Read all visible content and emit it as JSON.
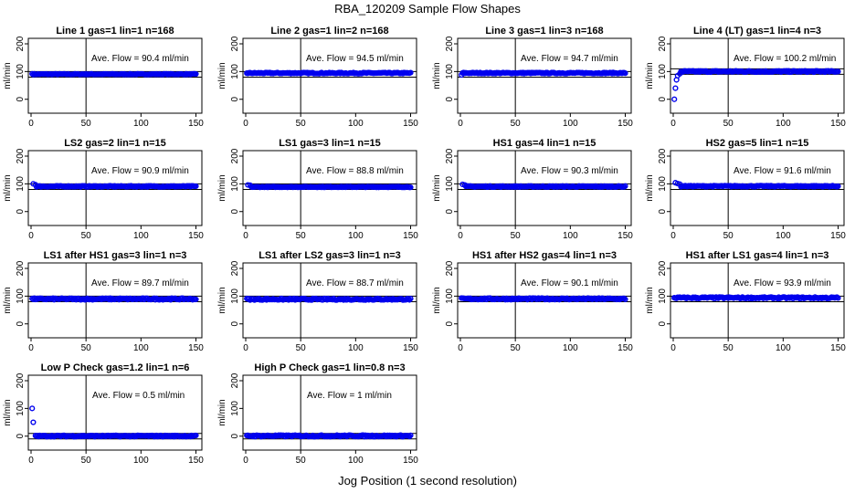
{
  "figure": {
    "title": "RBA_120209  Sample Flow Shapes",
    "xlabel": "Jog Position (1 second resolution)"
  },
  "chart_data": {
    "type": "scatter",
    "point_color": "#0000ee",
    "xlim": [
      0,
      150
    ],
    "ylim": [
      0,
      200
    ],
    "xticks": [
      "0",
      "50",
      "100",
      "150"
    ],
    "yticks": [
      "0",
      "100",
      "200"
    ],
    "ylabel": "ml/min",
    "vline_x": 50,
    "panels": [
      {
        "title": "Line 1 gas=1 lin=1 n=168",
        "ave_text": "Ave. Flow = 90.4  ml/min",
        "mean": 90.4,
        "hlines": [
          80,
          100
        ],
        "start_points": [
          [
            1,
            92
          ]
        ],
        "noise": 1.5
      },
      {
        "title": "Line 2 gas=1 lin=2 n=168",
        "ave_text": "Ave. Flow = 94.5  ml/min",
        "mean": 94.5,
        "hlines": [
          80,
          100
        ],
        "start_points": [],
        "noise": 2
      },
      {
        "title": "Line 3 gas=1 lin=3 n=168",
        "ave_text": "Ave. Flow = 94.7  ml/min",
        "mean": 94.7,
        "hlines": [
          80,
          100
        ],
        "start_points": [
          [
            1,
            88
          ]
        ],
        "noise": 2
      },
      {
        "title": "Line 4 (LT) gas=1 lin=4 n=3",
        "ave_text": "Ave. Flow = 100.2  ml/min",
        "mean": 100.2,
        "hlines": [
          90,
          110
        ],
        "start_points": [
          [
            1,
            0
          ],
          [
            2,
            40
          ],
          [
            3,
            70
          ],
          [
            4,
            85
          ],
          [
            6,
            92
          ]
        ],
        "noise": 2.5
      },
      {
        "title": "LS2 gas=2 lin=1 n=15",
        "ave_text": "Ave. Flow = 90.9  ml/min",
        "mean": 90.9,
        "hlines": [
          80,
          100
        ],
        "start_points": [
          [
            2,
            100
          ],
          [
            4,
            97
          ]
        ],
        "noise": 2
      },
      {
        "title": "LS1 gas=3 lin=1 n=15",
        "ave_text": "Ave. Flow = 88.8  ml/min",
        "mean": 88.8,
        "hlines": [
          80,
          100
        ],
        "start_points": [
          [
            2,
            96
          ],
          [
            4,
            95
          ]
        ],
        "noise": 1.5
      },
      {
        "title": "HS1 gas=4 lin=1 n=15",
        "ave_text": "Ave. Flow = 90.3  ml/min",
        "mean": 90.3,
        "hlines": [
          80,
          100
        ],
        "start_points": [
          [
            2,
            98
          ],
          [
            4,
            96
          ]
        ],
        "noise": 2
      },
      {
        "title": "HS2 gas=5 lin=1 n=15",
        "ave_text": "Ave. Flow = 91.6  ml/min",
        "mean": 91.6,
        "hlines": [
          80,
          100
        ],
        "start_points": [
          [
            2,
            104
          ],
          [
            4,
            101
          ],
          [
            6,
            99
          ]
        ],
        "noise": 2
      },
      {
        "title": "LS1 after HS1 gas=3 lin=1 n=3",
        "ave_text": "Ave. Flow = 89.7  ml/min",
        "mean": 89.7,
        "hlines": [
          80,
          100
        ],
        "start_points": [],
        "noise": 3
      },
      {
        "title": "LS1 after LS2 gas=3 lin=1 n=3",
        "ave_text": "Ave. Flow = 88.7  ml/min",
        "mean": 88.7,
        "hlines": [
          80,
          100
        ],
        "start_points": [],
        "noise": 3
      },
      {
        "title": "HS1 after HS2 gas=4 lin=1 n=3",
        "ave_text": "Ave. Flow = 90.1  ml/min",
        "mean": 90.1,
        "hlines": [
          80,
          100
        ],
        "start_points": [],
        "noise": 3
      },
      {
        "title": "HS1 after LS1 gas=4 lin=1 n=3",
        "ave_text": "Ave. Flow = 93.9  ml/min",
        "mean": 93.9,
        "hlines": [
          80,
          100
        ],
        "start_points": [],
        "noise": 3
      },
      {
        "title": "Low P Check gas=1.2 lin=1 n=6",
        "ave_text": "Ave. Flow = 0.5  ml/min",
        "mean": 0.5,
        "hlines": [
          -10,
          10
        ],
        "start_points": [
          [
            1,
            100
          ],
          [
            2,
            50
          ],
          [
            4,
            2
          ]
        ],
        "noise": 2.5
      },
      {
        "title": "High P Check gas=1 lin=0.8 n=3",
        "ave_text": "Ave. Flow = 1  ml/min",
        "mean": 1,
        "hlines": [
          -10,
          10
        ],
        "start_points": [],
        "noise": 3
      }
    ]
  }
}
